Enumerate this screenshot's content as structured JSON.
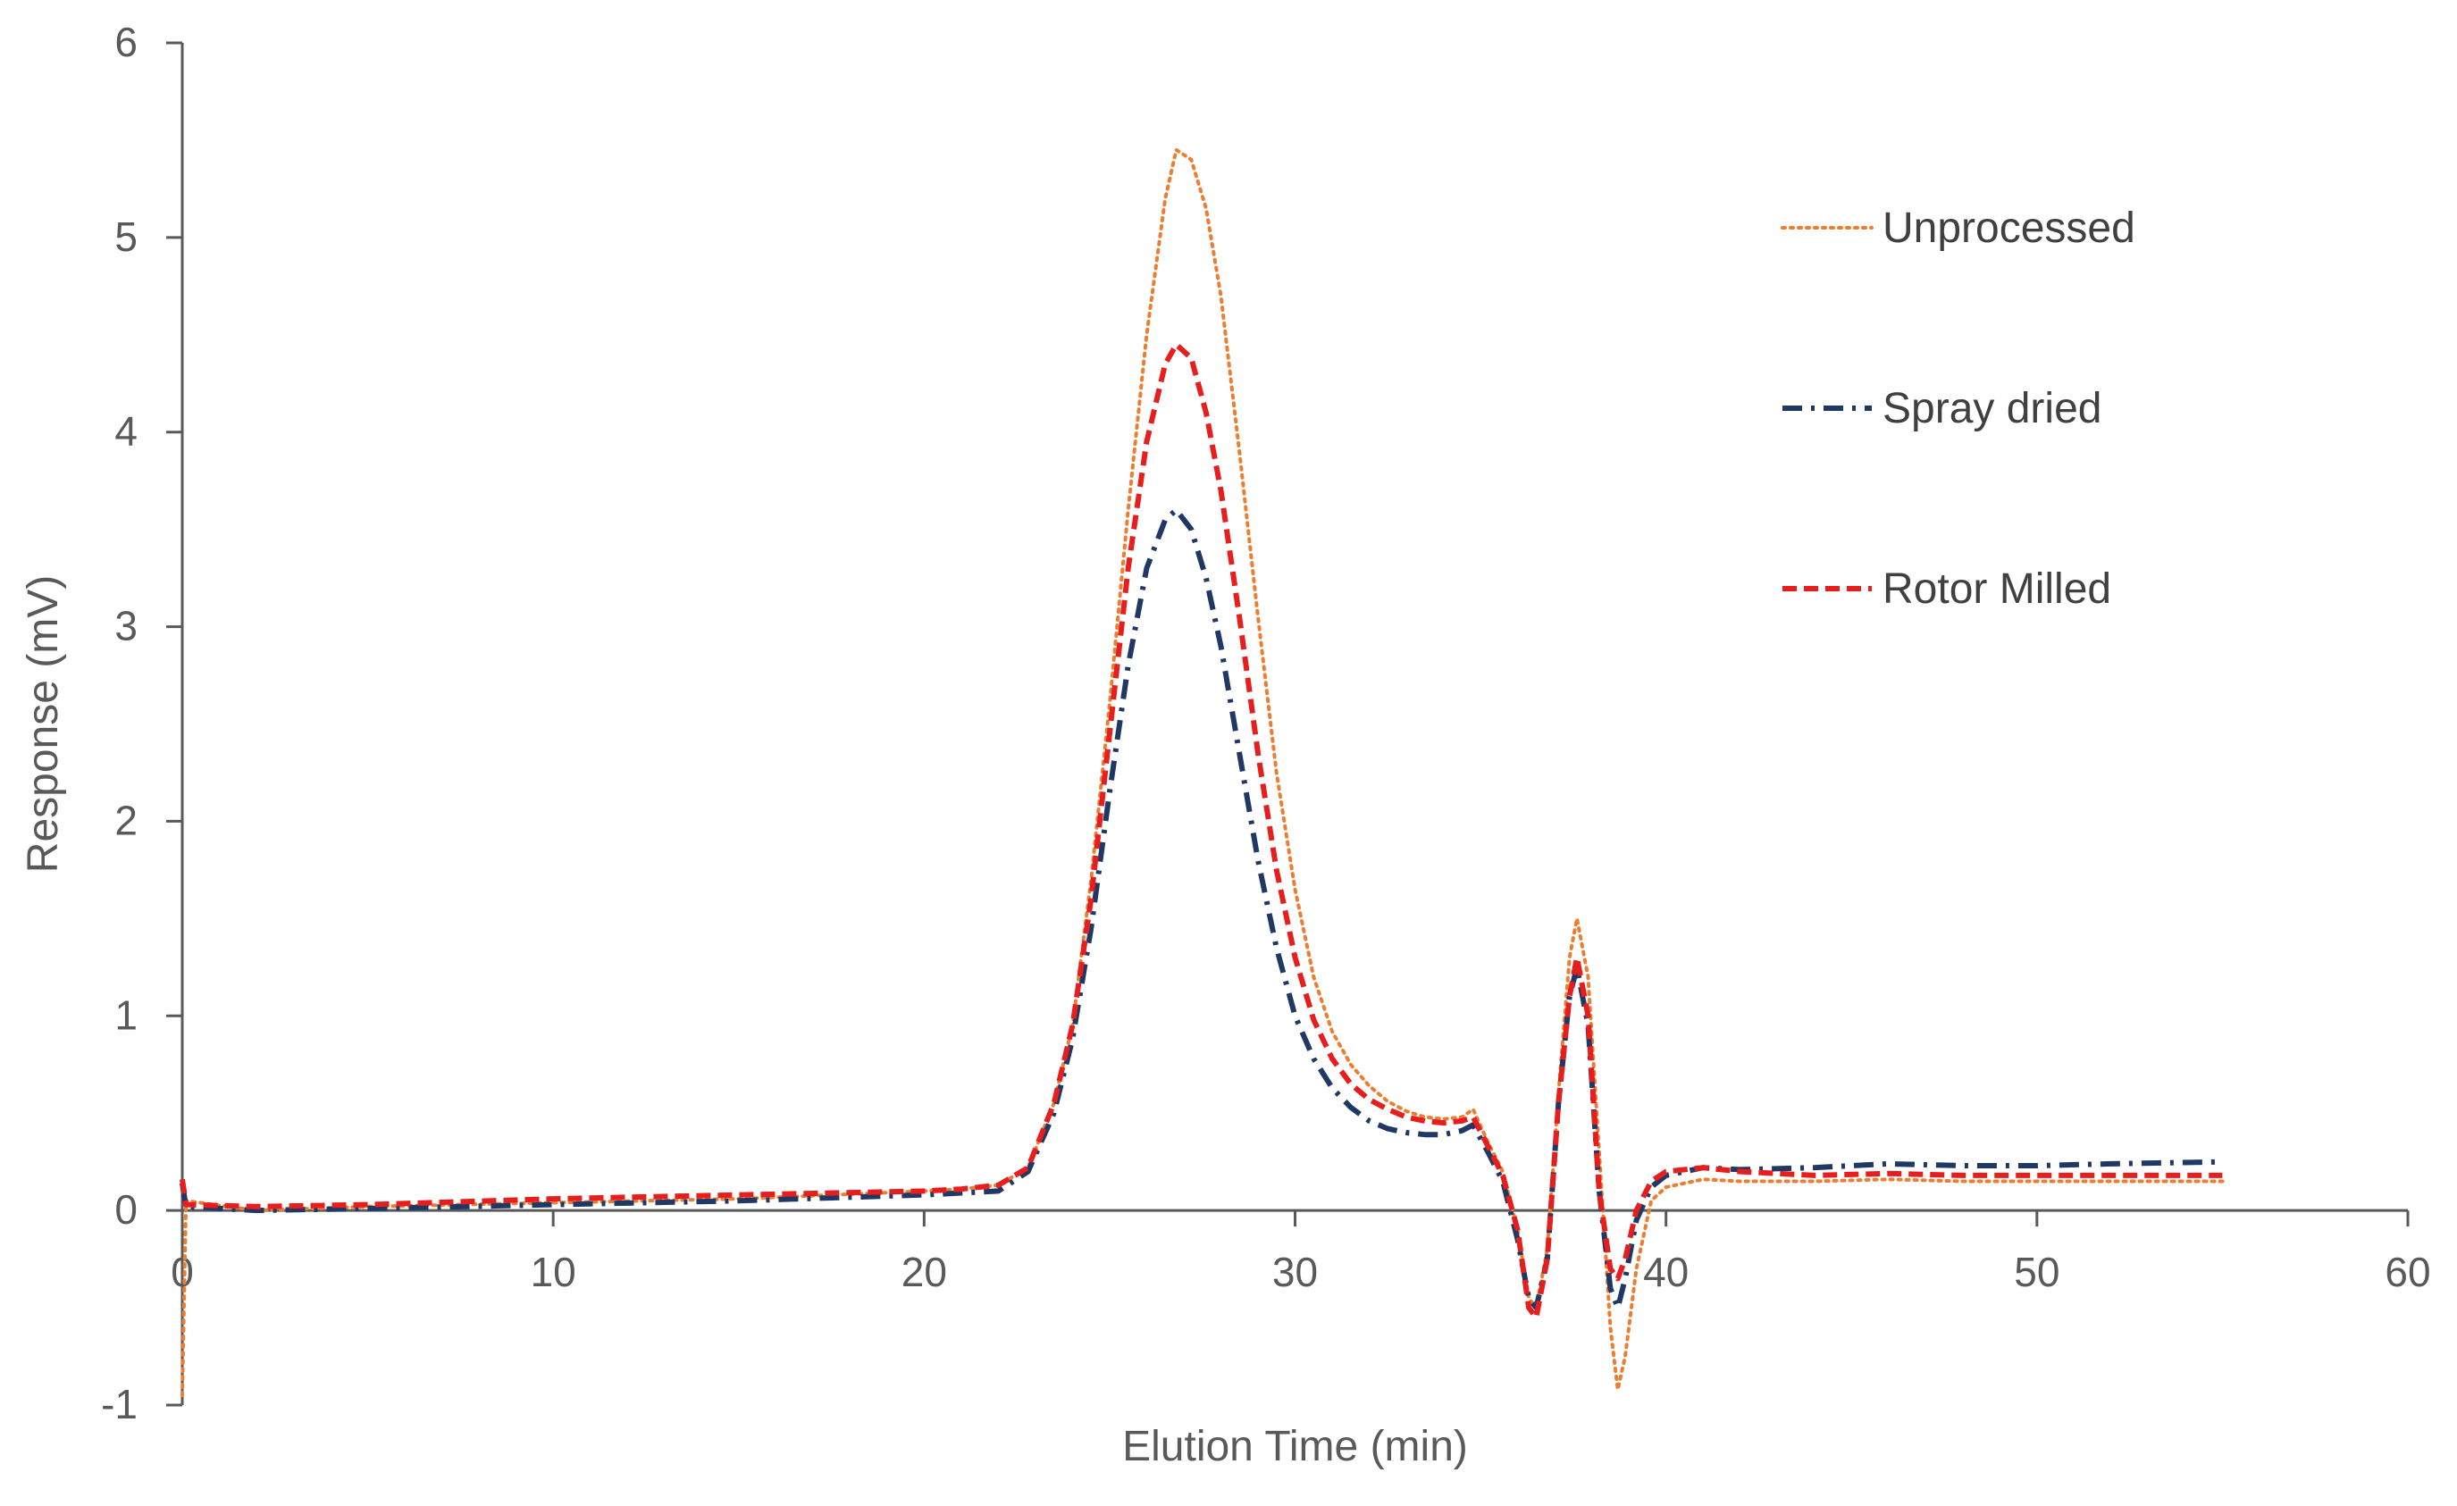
{
  "chart_data": {
    "type": "line",
    "title": "",
    "xlabel": "Elution Time (min)",
    "ylabel": "Response (mV)",
    "xlim": [
      0,
      60
    ],
    "ylim": [
      -1,
      6
    ],
    "x_ticks": [
      0,
      10,
      20,
      30,
      40,
      50,
      60
    ],
    "y_ticks": [
      -1,
      0,
      1,
      2,
      3,
      4,
      5,
      6
    ],
    "x_tick_labels": [
      "0",
      "10",
      "20",
      "30",
      "40",
      "50",
      "60"
    ],
    "y_tick_labels": [
      "-1",
      "0",
      "1",
      "2",
      "3",
      "4",
      "5",
      "6"
    ],
    "grid": false,
    "legend_position": "top-right",
    "series": [
      {
        "name": "Unprocessed",
        "color": "#ED7D31",
        "line_style": "dotted",
        "points": [
          [
            0,
            -0.95
          ],
          [
            0.1,
            0.05
          ],
          [
            2,
            0.0
          ],
          [
            5,
            0.02
          ],
          [
            10,
            0.04
          ],
          [
            15,
            0.06
          ],
          [
            20,
            0.1
          ],
          [
            21,
            0.11
          ],
          [
            22,
            0.13
          ],
          [
            22.8,
            0.22
          ],
          [
            23.5,
            0.55
          ],
          [
            24,
            0.95
          ],
          [
            24.5,
            1.7
          ],
          [
            25,
            2.6
          ],
          [
            25.5,
            3.6
          ],
          [
            26,
            4.5
          ],
          [
            26.5,
            5.2
          ],
          [
            26.8,
            5.45
          ],
          [
            27.2,
            5.4
          ],
          [
            27.6,
            5.15
          ],
          [
            28,
            4.7
          ],
          [
            28.5,
            3.9
          ],
          [
            29,
            3.05
          ],
          [
            29.5,
            2.25
          ],
          [
            30,
            1.65
          ],
          [
            30.5,
            1.2
          ],
          [
            31,
            0.92
          ],
          [
            31.5,
            0.75
          ],
          [
            32,
            0.64
          ],
          [
            32.5,
            0.56
          ],
          [
            33,
            0.51
          ],
          [
            33.5,
            0.48
          ],
          [
            34,
            0.47
          ],
          [
            34.5,
            0.48
          ],
          [
            34.8,
            0.52
          ],
          [
            35.2,
            0.35
          ],
          [
            35.6,
            0.2
          ],
          [
            36,
            -0.1
          ],
          [
            36.3,
            -0.45
          ],
          [
            36.5,
            -0.5
          ],
          [
            36.8,
            -0.2
          ],
          [
            37.1,
            0.6
          ],
          [
            37.4,
            1.3
          ],
          [
            37.6,
            1.5
          ],
          [
            37.9,
            1.2
          ],
          [
            38.2,
            0.3
          ],
          [
            38.5,
            -0.6
          ],
          [
            38.7,
            -0.92
          ],
          [
            38.9,
            -0.75
          ],
          [
            39.2,
            -0.3
          ],
          [
            39.6,
            0.05
          ],
          [
            40,
            0.12
          ],
          [
            41,
            0.16
          ],
          [
            42,
            0.15
          ],
          [
            44,
            0.15
          ],
          [
            46,
            0.16
          ],
          [
            48,
            0.15
          ],
          [
            50,
            0.15
          ],
          [
            52,
            0.15
          ],
          [
            55,
            0.15
          ]
        ]
      },
      {
        "name": "Spray dried",
        "color": "#203864",
        "line_style": "dash-dot",
        "points": [
          [
            0,
            0.14
          ],
          [
            0.1,
            0.02
          ],
          [
            2,
            0.0
          ],
          [
            5,
            0.01
          ],
          [
            10,
            0.03
          ],
          [
            15,
            0.05
          ],
          [
            20,
            0.08
          ],
          [
            21,
            0.09
          ],
          [
            22,
            0.1
          ],
          [
            22.8,
            0.2
          ],
          [
            23.5,
            0.5
          ],
          [
            24,
            0.88
          ],
          [
            24.5,
            1.45
          ],
          [
            25,
            2.15
          ],
          [
            25.5,
            2.8
          ],
          [
            26,
            3.3
          ],
          [
            26.5,
            3.55
          ],
          [
            26.8,
            3.6
          ],
          [
            27.2,
            3.5
          ],
          [
            27.6,
            3.25
          ],
          [
            28,
            2.9
          ],
          [
            28.5,
            2.35
          ],
          [
            29,
            1.8
          ],
          [
            29.5,
            1.35
          ],
          [
            30,
            1.0
          ],
          [
            30.5,
            0.78
          ],
          [
            31,
            0.63
          ],
          [
            31.5,
            0.53
          ],
          [
            32,
            0.46
          ],
          [
            32.5,
            0.42
          ],
          [
            33,
            0.4
          ],
          [
            33.5,
            0.39
          ],
          [
            34,
            0.39
          ],
          [
            34.5,
            0.41
          ],
          [
            34.8,
            0.44
          ],
          [
            35.2,
            0.3
          ],
          [
            35.6,
            0.15
          ],
          [
            36,
            -0.15
          ],
          [
            36.3,
            -0.45
          ],
          [
            36.5,
            -0.5
          ],
          [
            36.8,
            -0.25
          ],
          [
            37.1,
            0.55
          ],
          [
            37.4,
            1.1
          ],
          [
            37.6,
            1.25
          ],
          [
            37.9,
            0.95
          ],
          [
            38.2,
            0.1
          ],
          [
            38.5,
            -0.4
          ],
          [
            38.7,
            -0.5
          ],
          [
            38.9,
            -0.35
          ],
          [
            39.2,
            -0.05
          ],
          [
            39.6,
            0.12
          ],
          [
            40,
            0.18
          ],
          [
            41,
            0.22
          ],
          [
            42,
            0.21
          ],
          [
            44,
            0.22
          ],
          [
            46,
            0.24
          ],
          [
            48,
            0.23
          ],
          [
            50,
            0.23
          ],
          [
            52,
            0.24
          ],
          [
            55,
            0.25
          ]
        ]
      },
      {
        "name": "Rotor Milled",
        "color": "#E61E1E",
        "line_style": "dashed",
        "points": [
          [
            0,
            0.16
          ],
          [
            0.1,
            0.03
          ],
          [
            2,
            0.02
          ],
          [
            5,
            0.03
          ],
          [
            10,
            0.06
          ],
          [
            15,
            0.08
          ],
          [
            20,
            0.1
          ],
          [
            21,
            0.11
          ],
          [
            22,
            0.13
          ],
          [
            22.8,
            0.22
          ],
          [
            23.5,
            0.55
          ],
          [
            24,
            0.95
          ],
          [
            24.5,
            1.6
          ],
          [
            25,
            2.45
          ],
          [
            25.5,
            3.3
          ],
          [
            26,
            3.95
          ],
          [
            26.5,
            4.35
          ],
          [
            26.8,
            4.45
          ],
          [
            27.2,
            4.38
          ],
          [
            27.6,
            4.1
          ],
          [
            28,
            3.7
          ],
          [
            28.5,
            3.05
          ],
          [
            29,
            2.35
          ],
          [
            29.5,
            1.75
          ],
          [
            30,
            1.3
          ],
          [
            30.5,
            0.98
          ],
          [
            31,
            0.78
          ],
          [
            31.5,
            0.65
          ],
          [
            32,
            0.57
          ],
          [
            32.5,
            0.52
          ],
          [
            33,
            0.48
          ],
          [
            33.5,
            0.46
          ],
          [
            34,
            0.45
          ],
          [
            34.5,
            0.46
          ],
          [
            34.8,
            0.48
          ],
          [
            35.2,
            0.33
          ],
          [
            35.6,
            0.18
          ],
          [
            36,
            -0.1
          ],
          [
            36.3,
            -0.5
          ],
          [
            36.5,
            -0.55
          ],
          [
            36.8,
            -0.25
          ],
          [
            37.1,
            0.55
          ],
          [
            37.4,
            1.1
          ],
          [
            37.6,
            1.3
          ],
          [
            37.9,
            1.0
          ],
          [
            38.2,
            0.1
          ],
          [
            38.5,
            -0.3
          ],
          [
            38.7,
            -0.35
          ],
          [
            38.9,
            -0.25
          ],
          [
            39.2,
            0.0
          ],
          [
            39.6,
            0.15
          ],
          [
            40,
            0.2
          ],
          [
            41,
            0.22
          ],
          [
            42,
            0.2
          ],
          [
            44,
            0.18
          ],
          [
            46,
            0.19
          ],
          [
            48,
            0.18
          ],
          [
            50,
            0.18
          ],
          [
            52,
            0.18
          ],
          [
            55,
            0.18
          ]
        ]
      }
    ]
  }
}
